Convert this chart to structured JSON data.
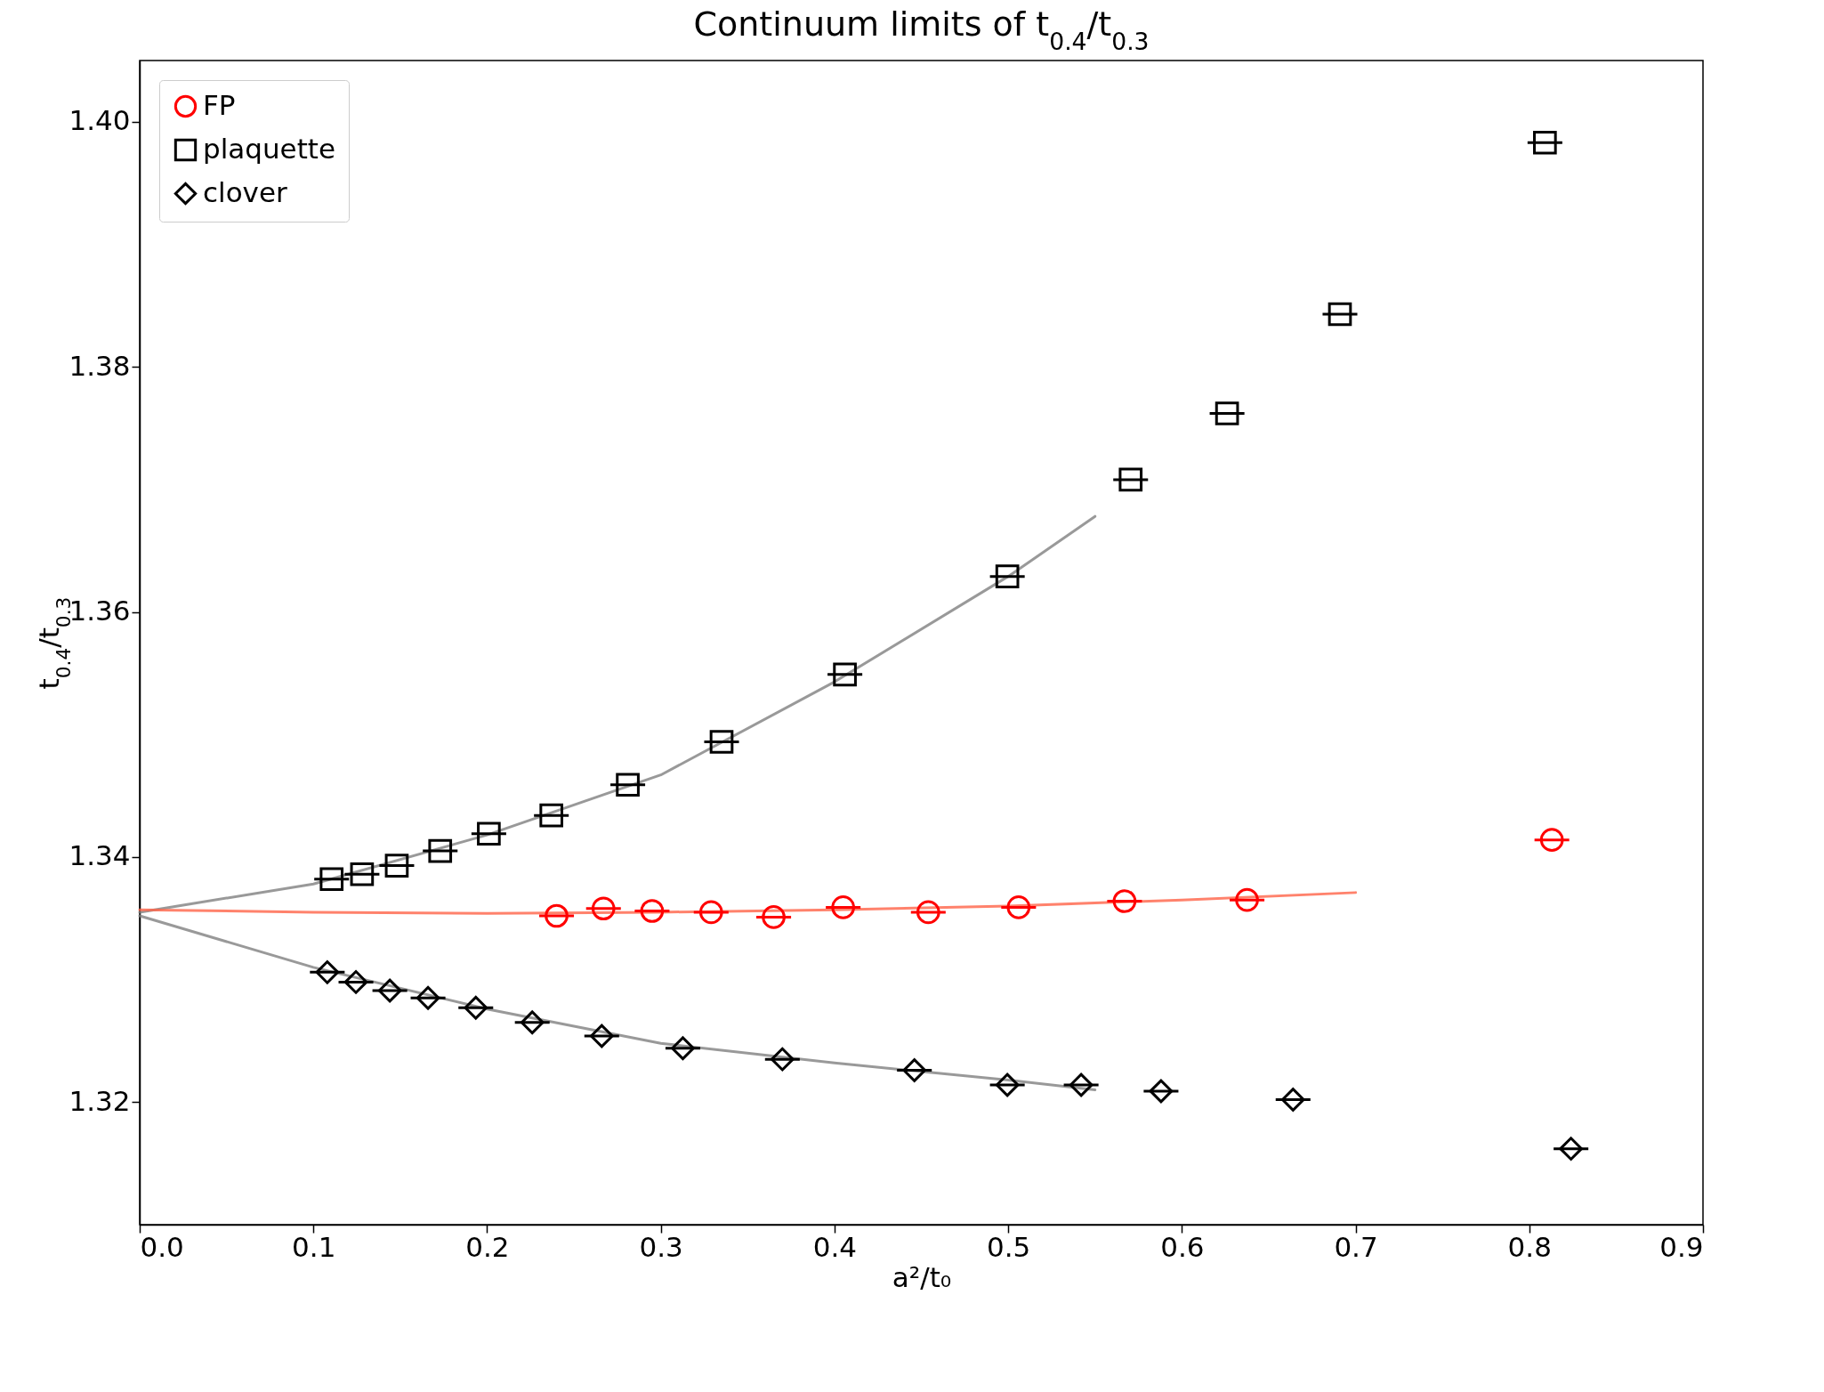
{
  "chart_data": {
    "type": "scatter",
    "title": "Continuum limits of t$_{0.4}$/t$_{0.3}$",
    "xlabel": "a²/t₀",
    "ylabel": "t$_{0.4}$/t$_{0.3}$",
    "xlim": [
      0,
      0.9
    ],
    "ylim": [
      1.31,
      1.405
    ],
    "xticks": [
      {
        "value": 0,
        "label": "0.0"
      },
      0.1,
      0.2,
      0.3,
      0.4,
      0.5,
      0.6,
      0.7,
      0.8,
      0.9
    ],
    "yticks": [
      1.32,
      1.34,
      1.36,
      1.38,
      {
        "value": 1.4,
        "label": "1.40"
      }
    ],
    "grid": false,
    "legend": "top left",
    "series": [
      {
        "type": "line",
        "color": "#808080",
        "x": [
          0,
          0.1,
          0.2,
          0.3,
          0.4,
          0.5,
          0.55
        ],
        "values": [
          1.3355,
          1.3378,
          1.3418,
          1.3467,
          1.3543,
          1.3629,
          1.3678
        ]
      },
      {
        "type": "line",
        "color": "#808080",
        "x": [
          0,
          0.1,
          0.2,
          0.3,
          0.4,
          0.5,
          0.55
        ],
        "values": [
          1.3352,
          1.331,
          1.3276,
          1.3248,
          1.3232,
          1.3218,
          1.321
        ]
      },
      {
        "type": "line",
        "color": "#ff6347",
        "x": [
          0,
          0.1,
          0.2,
          0.3,
          0.4,
          0.5,
          0.6,
          0.7
        ],
        "values": [
          1.3357,
          1.3355,
          1.3354,
          1.3355,
          1.3357,
          1.336,
          1.3365,
          1.3371
        ]
      },
      {
        "name": "FP",
        "color": "#ff0000",
        "marker": "circle",
        "x": [
          0.24,
          0.267,
          0.295,
          0.329,
          0.365,
          0.405,
          0.454,
          0.506,
          0.567,
          0.6375,
          0.813
        ],
        "values": [
          1.3352,
          1.3358,
          1.3356,
          1.3355,
          1.3351,
          1.3359,
          1.3355,
          1.3359,
          1.3364,
          1.3365,
          1.3414
        ],
        "xerrors": [
          0.01,
          0.01,
          0.01,
          0.01,
          0.01,
          0.01,
          0.01,
          0.01,
          0.01,
          0.01,
          0.01
        ]
      },
      {
        "name": "plaquette",
        "color": "#000000",
        "marker": "square",
        "x": [
          0.1105,
          0.128,
          0.148,
          0.173,
          0.201,
          0.237,
          0.281,
          0.335,
          0.406,
          0.4995,
          0.5705,
          0.626,
          0.691,
          0.809
        ],
        "values": [
          1.3382,
          1.3386,
          1.3393,
          1.3405,
          1.3419,
          1.3434,
          1.3459,
          1.3494,
          1.3549,
          1.3629,
          1.3708,
          1.3762,
          1.3843,
          1.3983
        ],
        "xerrors": [
          0.01,
          0.01,
          0.01,
          0.01,
          0.01,
          0.01,
          0.01,
          0.01,
          0.01,
          0.01,
          0.01,
          0.01,
          0.01,
          0.01
        ]
      },
      {
        "name": "clover",
        "color": "#000000",
        "marker": "diamond",
        "x": [
          0.108,
          0.1245,
          0.144,
          0.166,
          0.1935,
          0.226,
          0.266,
          0.3127,
          0.37,
          0.446,
          0.4995,
          0.542,
          0.588,
          0.664,
          0.824
        ],
        "values": [
          1.3306,
          1.3298,
          1.3291,
          1.3285,
          1.3277,
          1.3265,
          1.3254,
          1.3244,
          1.3235,
          1.3226,
          1.3214,
          1.3214,
          1.3209,
          1.3202,
          1.3162
        ],
        "xerrors": [
          0.01,
          0.01,
          0.01,
          0.01,
          0.01,
          0.01,
          0.01,
          0.01,
          0.01,
          0.01,
          0.01,
          0.01,
          0.01,
          0.01,
          0.01
        ]
      }
    ]
  }
}
